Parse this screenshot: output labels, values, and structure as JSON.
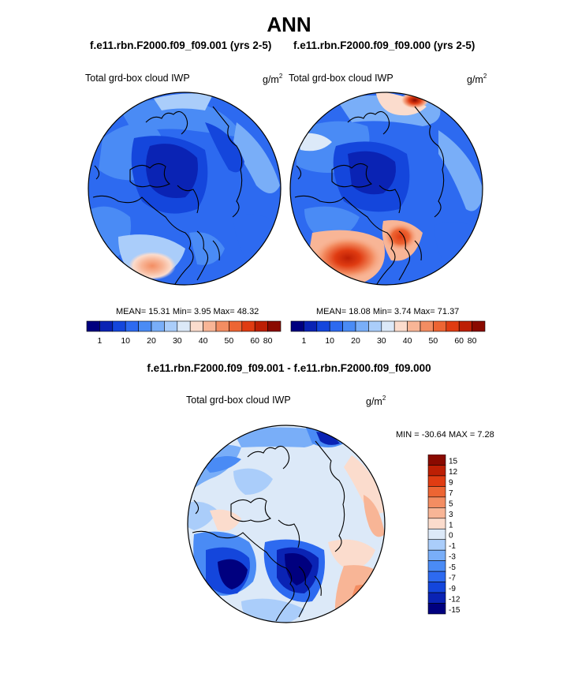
{
  "main_title": "ANN",
  "panels": [
    {
      "case_title": "f.e11.rbn.F2000.f09_f09.001 (yrs 2-5)",
      "variable": "Total grd-box cloud IWP",
      "unit_base": "g/m",
      "unit_exp": "2",
      "stats_text": "MEAN=  15.31  Min=    3.95  Max=  48.32",
      "colorbar_labels": [
        "1",
        "10",
        "20",
        "30",
        "40",
        "50",
        "60",
        "80"
      ]
    },
    {
      "case_title": "f.e11.rbn.F2000.f09_f09.000 (yrs 2-5)",
      "variable": "Total grd-box cloud IWP",
      "unit_base": "g/m",
      "unit_exp": "2",
      "stats_text": "MEAN=  18.08  Min=    3.74  Max=  71.37",
      "colorbar_labels": [
        "1",
        "10",
        "20",
        "30",
        "40",
        "50",
        "60",
        "80"
      ]
    }
  ],
  "difference": {
    "title": "f.e11.rbn.F2000.f09_f09.001 - f.e11.rbn.F2000.f09_f09.000",
    "variable": "Total grd-box cloud IWP",
    "unit_base": "g/m",
    "unit_exp": "2",
    "stats_text": "MIN = -30.64 MAX =   7.28",
    "colorbar_labels": [
      "15",
      "12",
      "9",
      "7",
      "5",
      "3",
      "1",
      "0",
      "-1",
      "-3",
      "-5",
      "-7",
      "-9",
      "-12",
      "-15"
    ]
  },
  "colors": {
    "abs_scale": [
      "#00007f",
      "#0a23b4",
      "#1446dc",
      "#2d6af0",
      "#4a8bf5",
      "#79aef8",
      "#aacdfa",
      "#dce9f8",
      "#fbdccd",
      "#f8b596",
      "#f38d62",
      "#ed6533",
      "#e03c12",
      "#bd1f04",
      "#8a0a00"
    ],
    "diff_scale": [
      "#8a0a00",
      "#bd1f04",
      "#e03c12",
      "#ed6533",
      "#f38d62",
      "#f8b596",
      "#fbdccd",
      "#dce9f8",
      "#aacdfa",
      "#79aef8",
      "#4a8bf5",
      "#2d6af0",
      "#1446dc",
      "#0a23b4",
      "#00007f"
    ]
  },
  "chart_data": [
    {
      "type": "heatmap",
      "title": "f.e11.rbn.F2000.f09_f09.001 (yrs 2-5)",
      "variable": "Total grd-box cloud IWP",
      "units": "g/m2",
      "projection": "north polar stereographic",
      "mean": 15.31,
      "min": 3.95,
      "max": 48.32,
      "levels": [
        1,
        5,
        10,
        15,
        20,
        25,
        30,
        35,
        40,
        45,
        50,
        55,
        60,
        70,
        80
      ]
    },
    {
      "type": "heatmap",
      "title": "f.e11.rbn.F2000.f09_f09.000 (yrs 2-5)",
      "variable": "Total grd-box cloud IWP",
      "units": "g/m2",
      "projection": "north polar stereographic",
      "mean": 18.08,
      "min": 3.74,
      "max": 71.37,
      "levels": [
        1,
        5,
        10,
        15,
        20,
        25,
        30,
        35,
        40,
        45,
        50,
        55,
        60,
        70,
        80
      ]
    },
    {
      "type": "heatmap",
      "title": "f.e11.rbn.F2000.f09_f09.001 - f.e11.rbn.F2000.f09_f09.000",
      "variable": "Total grd-box cloud IWP",
      "units": "g/m2",
      "projection": "north polar stereographic",
      "min": -30.64,
      "max": 7.28,
      "levels": [
        -15,
        -12,
        -9,
        -7,
        -5,
        -3,
        -1,
        0,
        1,
        3,
        5,
        7,
        9,
        12,
        15
      ]
    }
  ]
}
